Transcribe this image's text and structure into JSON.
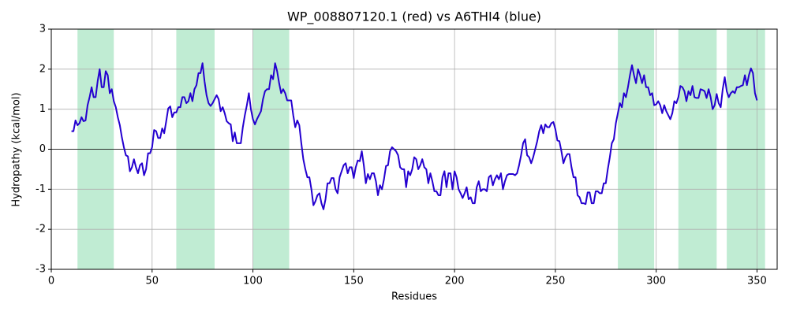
{
  "chart_data": {
    "type": "line",
    "title": "WP_008807120.1 (red) vs A6THI4 (blue)",
    "x_label": "Residues",
    "y_label": "Hydropathy (kcal/mol)",
    "xlim": [
      0,
      360
    ],
    "ylim": [
      -3,
      3
    ],
    "xticks": [
      0,
      50,
      100,
      150,
      200,
      250,
      300,
      350
    ],
    "yticks": [
      -3,
      -2,
      -1,
      0,
      1,
      2,
      3
    ],
    "grid": true,
    "hline": 0,
    "regions": [
      [
        13,
        31
      ],
      [
        62,
        81
      ],
      [
        100,
        118
      ],
      [
        281,
        299
      ],
      [
        311,
        330
      ],
      [
        335,
        354
      ]
    ],
    "region_color": "#c0ecd3",
    "series": [
      {
        "color": "#2400d0",
        "x": [
          10,
          11,
          12,
          13,
          14,
          15,
          16,
          17,
          18,
          19,
          20,
          21,
          22,
          23,
          24,
          25,
          26,
          27,
          28,
          29,
          30,
          31,
          32,
          33,
          34,
          35,
          36,
          37,
          38,
          39,
          40,
          41,
          42,
          43,
          44,
          45,
          46,
          47,
          48,
          49,
          50,
          51,
          52,
          53,
          54,
          55,
          56,
          57,
          58,
          59,
          60,
          61,
          62,
          63,
          64,
          65,
          66,
          67,
          68,
          69,
          70,
          71,
          72,
          73,
          74,
          75,
          76,
          77,
          78,
          79,
          80,
          81,
          82,
          83,
          84,
          85,
          86,
          87,
          88,
          89,
          90,
          91,
          92,
          93,
          94,
          95,
          96,
          97,
          98,
          99,
          100,
          101,
          102,
          103,
          104,
          105,
          106,
          107,
          108,
          109,
          110,
          111,
          112,
          113,
          114,
          115,
          116,
          117,
          118,
          119,
          120,
          121,
          122,
          123,
          124,
          125,
          126,
          127,
          128,
          129,
          130,
          131,
          132,
          133,
          134,
          135,
          136,
          137,
          138,
          139,
          140,
          141,
          142,
          143,
          144,
          145,
          146,
          147,
          148,
          149,
          150,
          151,
          152,
          153,
          154,
          155,
          156,
          157,
          158,
          159,
          160,
          161,
          162,
          163,
          164,
          165,
          166,
          167,
          168,
          169,
          170,
          171,
          172,
          173,
          174,
          175,
          176,
          177,
          178,
          179,
          180,
          181,
          182,
          183,
          184,
          185,
          186,
          187,
          188,
          189,
          190,
          191,
          192,
          193,
          194,
          195,
          196,
          197,
          198,
          199,
          200,
          201,
          202,
          203,
          204,
          205,
          206,
          207,
          208,
          209,
          210,
          211,
          212,
          213,
          214,
          215,
          216,
          217,
          218,
          219,
          220,
          221,
          222,
          223,
          224,
          225,
          226,
          227,
          228,
          229,
          230,
          231,
          232,
          233,
          234,
          235,
          236,
          237,
          238,
          239,
          240,
          241,
          242,
          243,
          244,
          245,
          246,
          247,
          248,
          249,
          250,
          251,
          252,
          253,
          254,
          255,
          256,
          257,
          258,
          259,
          260,
          261,
          262,
          263,
          264,
          265,
          266,
          267,
          268,
          269,
          270,
          271,
          272,
          273,
          274,
          275,
          276,
          277,
          278,
          279,
          280,
          281,
          282,
          283,
          284,
          285,
          286,
          287,
          288,
          289,
          290,
          291,
          292,
          293,
          294,
          295,
          296,
          297,
          298,
          299,
          300,
          301,
          302,
          303,
          304,
          305,
          306,
          307,
          308,
          309,
          310,
          311,
          312,
          313,
          314,
          315,
          316,
          317,
          318,
          319,
          320,
          321,
          322,
          323,
          324,
          325,
          326,
          327,
          328,
          329,
          330,
          331,
          332,
          333,
          334,
          335,
          336,
          337,
          338,
          339,
          340,
          341,
          342,
          343,
          344,
          345,
          346,
          347,
          348,
          349,
          350
        ],
        "values": [
          0.45,
          0.45,
          0.72,
          0.6,
          0.65,
          0.8,
          0.7,
          0.72,
          1.1,
          1.3,
          1.55,
          1.3,
          1.3,
          1.7,
          2.0,
          1.55,
          1.55,
          1.95,
          1.85,
          1.4,
          1.5,
          1.2,
          1.05,
          0.8,
          0.6,
          0.3,
          0.05,
          -0.15,
          -0.18,
          -0.55,
          -0.45,
          -0.25,
          -0.45,
          -0.6,
          -0.4,
          -0.35,
          -0.65,
          -0.5,
          -0.1,
          -0.1,
          0.05,
          0.48,
          0.45,
          0.28,
          0.28,
          0.52,
          0.4,
          0.7,
          1.02,
          1.07,
          0.8,
          0.92,
          0.92,
          1.05,
          1.05,
          1.3,
          1.3,
          1.15,
          1.2,
          1.4,
          1.2,
          1.5,
          1.6,
          1.9,
          1.9,
          2.15,
          1.7,
          1.35,
          1.15,
          1.08,
          1.15,
          1.25,
          1.35,
          1.25,
          0.95,
          1.05,
          0.9,
          0.7,
          0.65,
          0.62,
          0.2,
          0.42,
          0.15,
          0.15,
          0.15,
          0.55,
          0.85,
          1.1,
          1.4,
          1.0,
          0.75,
          0.62,
          0.75,
          0.85,
          0.95,
          1.25,
          1.45,
          1.5,
          1.5,
          1.85,
          1.75,
          2.15,
          1.95,
          1.65,
          1.4,
          1.5,
          1.4,
          1.22,
          1.22,
          1.22,
          0.85,
          0.55,
          0.72,
          0.6,
          0.15,
          -0.25,
          -0.5,
          -0.7,
          -0.7,
          -1.0,
          -1.4,
          -1.3,
          -1.15,
          -1.1,
          -1.35,
          -1.5,
          -1.25,
          -0.85,
          -0.85,
          -0.72,
          -0.72,
          -1.0,
          -1.1,
          -0.7,
          -0.55,
          -0.4,
          -0.35,
          -0.6,
          -0.45,
          -0.45,
          -0.72,
          -0.45,
          -0.28,
          -0.3,
          -0.05,
          -0.4,
          -0.85,
          -0.62,
          -0.75,
          -0.6,
          -0.6,
          -0.8,
          -1.15,
          -0.9,
          -1.0,
          -0.75,
          -0.42,
          -0.4,
          -0.05,
          0.05,
          0.0,
          -0.05,
          -0.15,
          -0.45,
          -0.5,
          -0.5,
          -0.95,
          -0.55,
          -0.65,
          -0.5,
          -0.2,
          -0.25,
          -0.5,
          -0.4,
          -0.25,
          -0.45,
          -0.5,
          -0.85,
          -0.6,
          -0.8,
          -1.05,
          -1.05,
          -1.15,
          -1.15,
          -0.7,
          -0.55,
          -0.95,
          -0.6,
          -0.6,
          -1.0,
          -0.55,
          -0.7,
          -1.0,
          -1.1,
          -1.22,
          -1.1,
          -0.95,
          -1.25,
          -1.2,
          -1.35,
          -1.35,
          -0.95,
          -0.8,
          -1.05,
          -1.0,
          -1.0,
          -1.05,
          -0.7,
          -0.65,
          -0.9,
          -0.75,
          -0.65,
          -0.75,
          -0.6,
          -1.0,
          -0.8,
          -0.65,
          -0.62,
          -0.62,
          -0.62,
          -0.65,
          -0.6,
          -0.4,
          -0.15,
          0.15,
          0.25,
          -0.15,
          -0.2,
          -0.35,
          -0.2,
          0.0,
          0.2,
          0.45,
          0.6,
          0.4,
          0.62,
          0.55,
          0.55,
          0.65,
          0.68,
          0.5,
          0.22,
          0.2,
          -0.05,
          -0.35,
          -0.2,
          -0.12,
          -0.12,
          -0.45,
          -0.7,
          -0.7,
          -1.15,
          -1.2,
          -1.35,
          -1.35,
          -1.37,
          -1.08,
          -1.08,
          -1.35,
          -1.35,
          -1.05,
          -1.05,
          -1.1,
          -1.1,
          -0.85,
          -0.85,
          -0.5,
          -0.2,
          0.15,
          0.25,
          0.65,
          0.9,
          1.15,
          1.05,
          1.4,
          1.3,
          1.55,
          1.85,
          2.1,
          1.85,
          1.65,
          2.0,
          1.85,
          1.65,
          1.85,
          1.55,
          1.55,
          1.35,
          1.4,
          1.1,
          1.12,
          1.2,
          1.1,
          0.9,
          1.1,
          0.95,
          0.85,
          0.75,
          0.9,
          1.2,
          1.15,
          1.3,
          1.58,
          1.55,
          1.45,
          1.2,
          1.45,
          1.35,
          1.58,
          1.3,
          1.28,
          1.28,
          1.5,
          1.48,
          1.45,
          1.28,
          1.5,
          1.3,
          1.0,
          1.1,
          1.38,
          1.15,
          1.05,
          1.5,
          1.8,
          1.45,
          1.3,
          1.4,
          1.45,
          1.4,
          1.55,
          1.55,
          1.58,
          1.6,
          1.85,
          1.6,
          1.85,
          2.02,
          1.9,
          1.4,
          1.22
        ]
      }
    ]
  }
}
